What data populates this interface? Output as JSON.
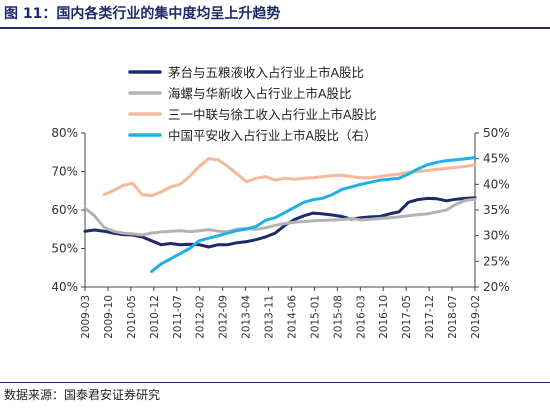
{
  "header": {
    "title": "图 11：国内各类行业的集中度均呈上升趋势"
  },
  "footer": {
    "source": "数据来源：国泰君安证券研究"
  },
  "chart_data": {
    "type": "line",
    "x": [
      "2009-03",
      "2009-06",
      "2009-09",
      "2009-12",
      "2010-03",
      "2010-06",
      "2010-09",
      "2010-12",
      "2011-03",
      "2011-06",
      "2011-09",
      "2011-12",
      "2012-03",
      "2012-06",
      "2012-09",
      "2012-12",
      "2013-03",
      "2013-06",
      "2013-09",
      "2013-12",
      "2014-03",
      "2014-06",
      "2014-09",
      "2014-12",
      "2015-03",
      "2015-06",
      "2015-09",
      "2015-12",
      "2016-03",
      "2016-06",
      "2016-09",
      "2016-12",
      "2017-03",
      "2017-06",
      "2017-09",
      "2017-12",
      "2018-03",
      "2018-06",
      "2018-09",
      "2018-12",
      "2019-03",
      "2019-06"
    ],
    "x_tick_labels": [
      "2009-03",
      "2009-10",
      "2010-05",
      "2010-12",
      "2011-07",
      "2012-02",
      "2012-09",
      "2013-04",
      "2013-11",
      "2014-06",
      "2015-01",
      "2015-08",
      "2016-03",
      "2016-10",
      "2017-05",
      "2017-12",
      "2018-07",
      "2019-02"
    ],
    "y_left": {
      "min": 40,
      "max": 80,
      "ticks": [
        "40%",
        "50%",
        "60%",
        "70%",
        "80%"
      ]
    },
    "y_right": {
      "min": 20,
      "max": 50,
      "ticks": [
        "20%",
        "25%",
        "30%",
        "35%",
        "40%",
        "45%",
        "50%"
      ]
    },
    "grid": false,
    "legend_position": "top",
    "series": [
      {
        "name": "茅台与五粮液收入占行业上市A股比",
        "axis": "left",
        "color": "#1f2a6b",
        "values": [
          54.5,
          54.8,
          54.5,
          54.0,
          53.6,
          53.5,
          53.0,
          52.0,
          51.0,
          51.3,
          51.0,
          51.1,
          51.0,
          50.4,
          51.0,
          51.0,
          51.5,
          51.8,
          52.3,
          53.0,
          54.0,
          56.0,
          57.5,
          58.5,
          59.2,
          59.0,
          58.7,
          58.3,
          57.6,
          58.0,
          58.2,
          58.3,
          59.0,
          59.5,
          62.0,
          62.7,
          63.0,
          62.9,
          62.4,
          62.8,
          63.0,
          63.2
        ]
      },
      {
        "name": "海螺与华新收入占行业上市A股比",
        "axis": "left",
        "color": "#b3b3b3",
        "values": [
          60.5,
          58.5,
          55.5,
          54.5,
          54.0,
          53.8,
          53.5,
          54.0,
          54.3,
          54.5,
          54.6,
          54.4,
          54.6,
          54.9,
          54.5,
          54.4,
          55.0,
          55.2,
          55.0,
          55.4,
          56.0,
          56.5,
          56.8,
          57.0,
          57.2,
          57.3,
          57.4,
          57.5,
          57.8,
          57.4,
          57.6,
          57.8,
          58.0,
          58.2,
          58.5,
          58.8,
          59.0,
          59.5,
          60.0,
          61.5,
          62.5,
          62.8
        ]
      },
      {
        "name": "三一中联与徐工收入占行业上市A股比",
        "axis": "right",
        "color": "#f6b89a",
        "values": [
          null,
          null,
          38.0,
          38.8,
          39.8,
          40.2,
          38.0,
          37.8,
          38.5,
          39.5,
          40.0,
          41.5,
          43.5,
          45.0,
          44.8,
          43.5,
          42.0,
          40.5,
          41.2,
          41.5,
          40.8,
          41.2,
          41.0,
          41.2,
          41.3,
          41.5,
          41.7,
          41.8,
          41.5,
          41.3,
          41.3,
          41.5,
          41.8,
          42.0,
          42.3,
          42.5,
          42.7,
          42.9,
          43.1,
          43.3,
          43.5,
          43.8
        ]
      },
      {
        "name": "中国平安收入占行业上市A股比（右）",
        "axis": "right",
        "color": "#1fb0e6",
        "values": [
          null,
          null,
          null,
          null,
          null,
          null,
          null,
          23.0,
          24.5,
          25.5,
          26.5,
          27.5,
          29.0,
          29.5,
          30.0,
          30.5,
          31.0,
          31.3,
          31.8,
          33.0,
          33.5,
          34.5,
          35.5,
          36.5,
          37.0,
          37.3,
          38.0,
          39.0,
          39.5,
          40.0,
          40.4,
          40.8,
          41.0,
          41.2,
          42.0,
          43.0,
          43.8,
          44.3,
          44.6,
          44.8,
          45.0,
          45.2
        ]
      }
    ]
  }
}
